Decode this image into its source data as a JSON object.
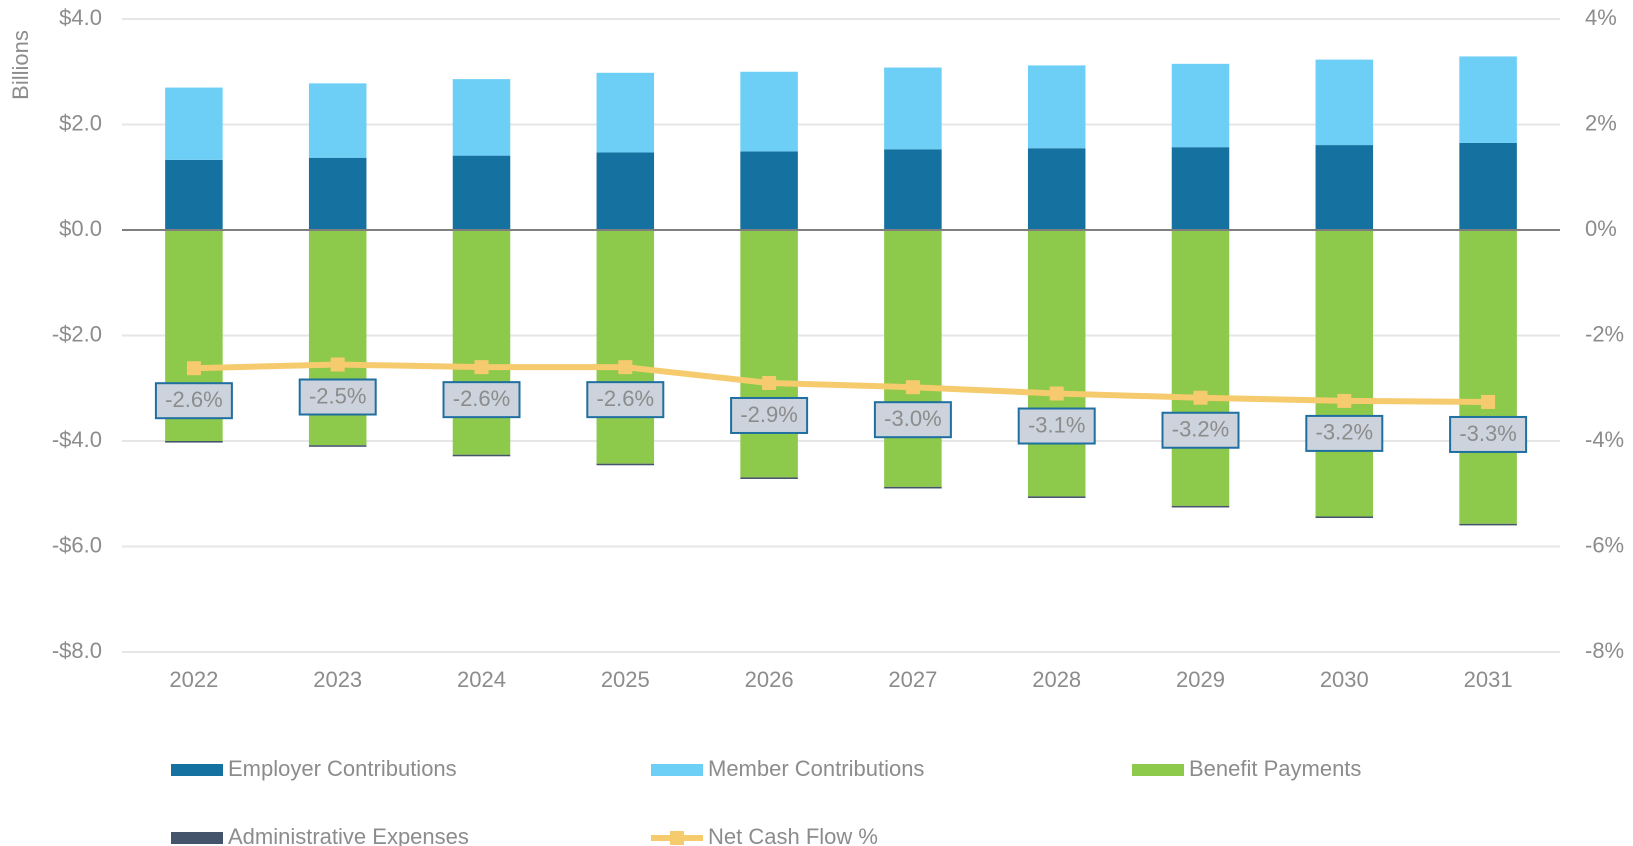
{
  "chart_data": {
    "type": "bar",
    "y_label": "Billions",
    "categories": [
      "2022",
      "2023",
      "2024",
      "2025",
      "2026",
      "2027",
      "2028",
      "2029",
      "2030",
      "2031"
    ],
    "stacked": true,
    "series": [
      {
        "name": "Employer Contributions",
        "color": "#15719f",
        "values": [
          1.33,
          1.37,
          1.41,
          1.47,
          1.49,
          1.53,
          1.55,
          1.57,
          1.61,
          1.65
        ]
      },
      {
        "name": "Member Contributions",
        "color": "#6dcff6",
        "values": [
          1.37,
          1.41,
          1.45,
          1.51,
          1.51,
          1.55,
          1.57,
          1.58,
          1.62,
          1.64
        ]
      },
      {
        "name": "Benefit Payments",
        "color": "#8dc94b",
        "values": [
          -4.0,
          -4.08,
          -4.26,
          -4.43,
          -4.69,
          -4.87,
          -5.05,
          -5.23,
          -5.43,
          -5.57
        ]
      },
      {
        "name": "Administrative Expenses",
        "color": "#44546a",
        "values": [
          -0.03,
          -0.03,
          -0.03,
          -0.03,
          -0.03,
          -0.03,
          -0.03,
          -0.03,
          -0.03,
          -0.03
        ]
      },
      {
        "name": "Net Cash Flow %",
        "type": "line",
        "axis": "y2",
        "color": "#f5cb6e",
        "values": [
          -2.62,
          -2.55,
          -2.6,
          -2.6,
          -2.9,
          -2.98,
          -3.1,
          -3.18,
          -3.24,
          -3.26
        ],
        "value_labels": [
          "-2.6%",
          "-2.5%",
          "-2.6%",
          "-2.6%",
          "-2.9%",
          "-3.0%",
          "-3.1%",
          "-3.2%",
          "-3.2%",
          "-3.3%"
        ]
      }
    ],
    "ylim": [
      -8,
      4
    ],
    "yticks": [
      {
        "value": 4,
        "label": "$4.0"
      },
      {
        "value": 2,
        "label": "$2.0"
      },
      {
        "value": 0,
        "label": "$0.0"
      },
      {
        "value": -2,
        "label": "-$2.0"
      },
      {
        "value": -4,
        "label": "-$4.0"
      },
      {
        "value": -6,
        "label": "-$6.0"
      },
      {
        "value": -8,
        "label": "-$8.0"
      }
    ],
    "y2lim": [
      -8,
      4
    ],
    "y2ticks": [
      {
        "value": 4,
        "label": "4%"
      },
      {
        "value": 2,
        "label": "2%"
      },
      {
        "value": 0,
        "label": "0%"
      },
      {
        "value": -2,
        "label": "-2%"
      },
      {
        "value": -4,
        "label": "-4%"
      },
      {
        "value": -6,
        "label": "-6%"
      },
      {
        "value": -8,
        "label": "-8%"
      }
    ],
    "grid": true,
    "legend": "bottom"
  }
}
